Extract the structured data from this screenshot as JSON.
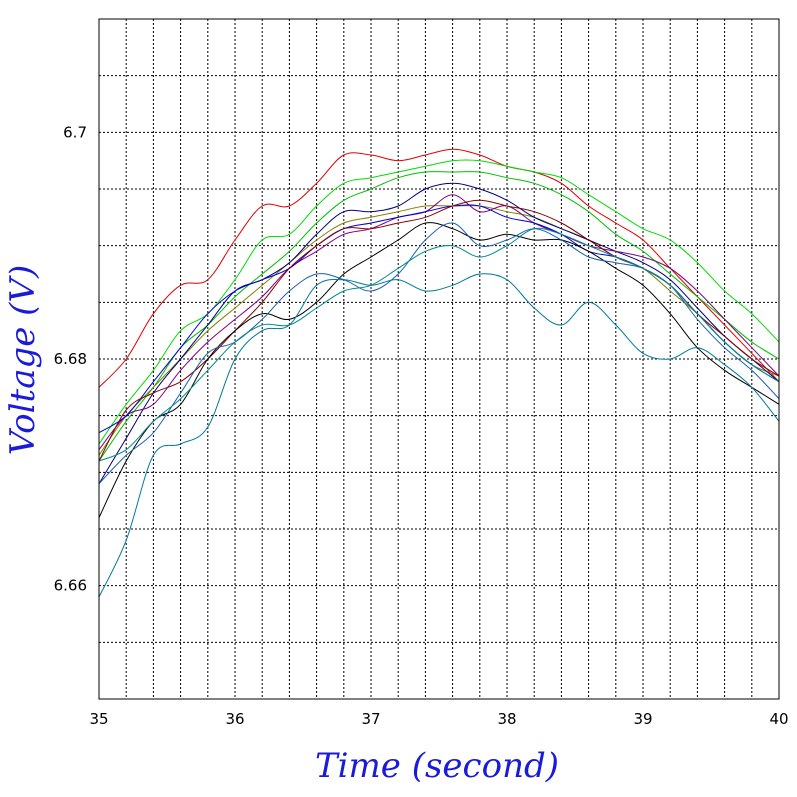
{
  "chart_data": {
    "type": "line",
    "title": "",
    "xlabel": "Time (second)",
    "ylabel": "Voltage (V)",
    "label_color": "#1a1adb",
    "xlim": [
      35,
      40
    ],
    "ylim": [
      6.65,
      6.71
    ],
    "grid": true,
    "grid_style": "dotted",
    "x_ticks": [
      35,
      36,
      37,
      38,
      39,
      40
    ],
    "x_tick_labels": [
      "35",
      "36",
      "37",
      "38",
      "39",
      "40"
    ],
    "y_ticks": [
      6.66,
      6.68,
      6.7
    ],
    "y_tick_labels": [
      "6.66",
      "6.68",
      "6.7"
    ],
    "x": [
      35.0,
      35.2,
      35.4,
      35.6,
      35.8,
      36.0,
      36.2,
      36.4,
      36.6,
      36.8,
      37.0,
      37.2,
      37.4,
      37.6,
      37.8,
      38.0,
      38.2,
      38.4,
      38.6,
      38.8,
      39.0,
      39.2,
      39.4,
      39.6,
      39.8,
      40.0
    ],
    "series": [
      {
        "color": "#e00000",
        "values": [
          6.6775,
          6.68,
          6.684,
          6.6865,
          6.687,
          6.6905,
          6.6935,
          6.6935,
          6.6955,
          6.698,
          6.698,
          6.6975,
          6.698,
          6.6985,
          6.698,
          6.697,
          6.6965,
          6.6955,
          6.6935,
          6.692,
          6.6905,
          6.688,
          6.6855,
          6.683,
          6.6805,
          6.678
        ]
      },
      {
        "color": "#00dd00",
        "values": [
          6.6725,
          6.676,
          6.679,
          6.6825,
          6.684,
          6.687,
          6.6905,
          6.691,
          6.6935,
          6.6955,
          6.696,
          6.6965,
          6.697,
          6.6975,
          6.6975,
          6.697,
          6.6965,
          6.696,
          6.6945,
          6.693,
          6.6915,
          6.6905,
          6.6885,
          6.686,
          6.684,
          6.6815
        ]
      },
      {
        "color": "#00c000",
        "values": [
          6.671,
          6.6745,
          6.6775,
          6.681,
          6.683,
          6.6855,
          6.6875,
          6.6895,
          6.692,
          6.694,
          6.695,
          6.696,
          6.6965,
          6.6965,
          6.6965,
          6.696,
          6.6955,
          6.6945,
          6.693,
          6.691,
          6.6895,
          6.6875,
          6.6855,
          6.6835,
          6.6815,
          6.68
        ]
      },
      {
        "color": "#808000",
        "values": [
          6.6715,
          6.675,
          6.6775,
          6.68,
          6.6825,
          6.6845,
          6.6865,
          6.6885,
          6.6905,
          6.692,
          6.6925,
          6.693,
          6.6935,
          6.6935,
          6.6935,
          6.693,
          6.6925,
          6.6915,
          6.6905,
          6.689,
          6.688,
          6.686,
          6.684,
          6.6815,
          6.6795,
          6.6785
        ]
      },
      {
        "color": "#000080",
        "values": [
          6.669,
          6.673,
          6.677,
          6.68,
          6.683,
          6.686,
          6.687,
          6.6885,
          6.691,
          6.693,
          6.693,
          6.6935,
          6.695,
          6.6955,
          6.695,
          6.694,
          6.6925,
          6.6915,
          6.6905,
          6.6895,
          6.6885,
          6.687,
          6.6845,
          6.682,
          6.68,
          6.678
        ]
      },
      {
        "color": "#800080",
        "values": [
          6.672,
          6.675,
          6.676,
          6.679,
          6.6815,
          6.6835,
          6.6855,
          6.688,
          6.6895,
          6.691,
          6.6915,
          6.6925,
          6.693,
          6.6945,
          6.693,
          6.6935,
          6.692,
          6.691,
          6.69,
          6.6895,
          6.689,
          6.688,
          6.686,
          6.6835,
          6.681,
          6.6785
        ]
      },
      {
        "color": "#0000e0",
        "values": [
          6.6735,
          6.675,
          6.678,
          6.681,
          6.684,
          6.686,
          6.687,
          6.688,
          6.69,
          6.6915,
          6.692,
          6.6925,
          6.693,
          6.6935,
          6.6935,
          6.6925,
          6.692,
          6.691,
          6.6895,
          6.689,
          6.688,
          6.6865,
          6.684,
          6.6815,
          6.6795,
          6.678
        ]
      },
      {
        "color": "#8b0000",
        "values": [
          6.671,
          6.6755,
          6.677,
          6.678,
          6.68,
          6.6825,
          6.685,
          6.688,
          6.69,
          6.6915,
          6.6915,
          6.692,
          6.6925,
          6.6935,
          6.694,
          6.6935,
          6.693,
          6.692,
          6.6905,
          6.689,
          6.688,
          6.6865,
          6.684,
          6.682,
          6.68,
          6.6785
        ]
      },
      {
        "color": "#000000",
        "values": [
          6.666,
          6.671,
          6.6745,
          6.676,
          6.68,
          6.6825,
          6.684,
          6.6835,
          6.685,
          6.6875,
          6.689,
          6.6905,
          6.692,
          6.6915,
          6.6905,
          6.691,
          6.6905,
          6.6905,
          6.6895,
          6.688,
          6.6865,
          6.684,
          6.681,
          6.679,
          6.6775,
          6.676
        ]
      },
      {
        "color": "#1a5fb4",
        "values": [
          6.669,
          6.6715,
          6.6735,
          6.677,
          6.6805,
          6.6815,
          6.6835,
          6.686,
          6.6875,
          6.687,
          6.686,
          6.6875,
          6.6905,
          6.692,
          6.69,
          6.6905,
          6.6915,
          6.6905,
          6.689,
          6.6885,
          6.688,
          6.6865,
          6.6835,
          6.681,
          6.679,
          6.6765
        ]
      },
      {
        "color": "#008b8b",
        "values": [
          6.671,
          6.672,
          6.6745,
          6.6765,
          6.679,
          6.6815,
          6.683,
          6.683,
          6.6845,
          6.686,
          6.6865,
          6.688,
          6.6895,
          6.69,
          6.689,
          6.69,
          6.6915,
          6.691,
          6.69,
          6.689,
          6.688,
          6.6865,
          6.684,
          6.6815,
          6.6795,
          6.678
        ]
      },
      {
        "color": "#007a9a",
        "values": [
          6.659,
          6.664,
          6.6715,
          6.6725,
          6.674,
          6.68,
          6.6825,
          6.683,
          6.6865,
          6.687,
          6.6865,
          6.687,
          6.686,
          6.6865,
          6.6875,
          6.687,
          6.6845,
          6.683,
          6.685,
          6.683,
          6.6805,
          6.68,
          6.681,
          6.6795,
          6.6775,
          6.6745
        ]
      }
    ]
  }
}
